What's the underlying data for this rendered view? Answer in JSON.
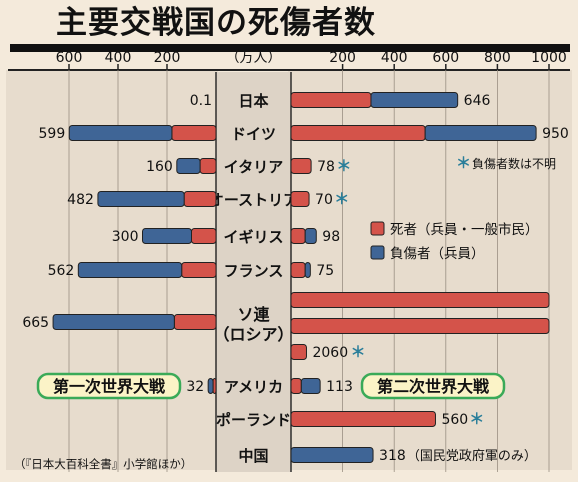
{
  "title": "主要交戦国の死傷者数",
  "unit": "（万人）",
  "legend": {
    "dead": "死者（兵員・一般市民）",
    "wounded": "負傷者（兵員）"
  },
  "note": "＊負傷者数は不明",
  "ww1_label": "第一次世界大戦",
  "ww2_label": "第二次世界大戦",
  "source": "（『日本大百科全書』小学館ほか）",
  "colors": {
    "dead": "#d4534a",
    "wounded": "#3f6596",
    "badge_bg": "#fbf3c7",
    "badge_border": "#3aaa58",
    "star": "#2a7e9a",
    "center": "#ddd3c6"
  },
  "chart_data": {
    "type": "bar",
    "orientation": "horizontal-diverging",
    "unit": "万人",
    "left_axis_ticks": [
      600,
      400,
      200
    ],
    "right_axis_ticks": [
      200,
      400,
      600,
      800,
      1000
    ],
    "left_series_name": "第一次世界大戦",
    "right_series_name": "第二次世界大戦",
    "countries": [
      {
        "name": "日本",
        "ww1": {
          "total": "0.1"
        },
        "ww2": {
          "dead": 310,
          "wounded": 336,
          "total": "646"
        }
      },
      {
        "name": "ドイツ",
        "ww1": {
          "dead": 180,
          "wounded": 419,
          "total": "599"
        },
        "ww2": {
          "dead": 520,
          "wounded": 430,
          "total": "950"
        }
      },
      {
        "name": "イタリア",
        "ww1": {
          "dead": 65,
          "wounded": 95,
          "total": "160"
        },
        "ww2": {
          "dead": 78,
          "total": "78",
          "wounded_unknown": true
        }
      },
      {
        "name": "オーストリア",
        "ww1": {
          "dead": 130,
          "wounded": 352,
          "total": "482"
        },
        "ww2": {
          "dead": 70,
          "total": "70",
          "wounded_unknown": true
        }
      },
      {
        "name": "イギリス",
        "ww1": {
          "dead": 100,
          "wounded": 200,
          "total": "300"
        },
        "ww2": {
          "dead": 55,
          "wounded": 43,
          "total": "98"
        }
      },
      {
        "name": "フランス",
        "ww1": {
          "dead": 140,
          "wounded": 422,
          "total": "562"
        },
        "ww2": {
          "dead": 55,
          "wounded": 20,
          "total": "75"
        }
      },
      {
        "name": "ソ連\n（ロシア）",
        "ww1": {
          "dead": 170,
          "wounded": 495,
          "total": "665"
        },
        "ww2": {
          "dead": 2060,
          "total": "2060",
          "wounded_unknown": true
        }
      },
      {
        "name": "アメリカ",
        "ww1": {
          "dead": 12,
          "wounded": 20,
          "total": "32"
        },
        "ww2": {
          "dead": 40,
          "wounded": 73,
          "total": "113"
        }
      },
      {
        "name": "ポーランド",
        "ww2": {
          "dead": 560,
          "total": "560",
          "wounded_unknown": true
        }
      },
      {
        "name": "中国",
        "ww2": {
          "wounded": 318,
          "total": "318",
          "note": "（国民党政府軍のみ）"
        }
      }
    ]
  }
}
